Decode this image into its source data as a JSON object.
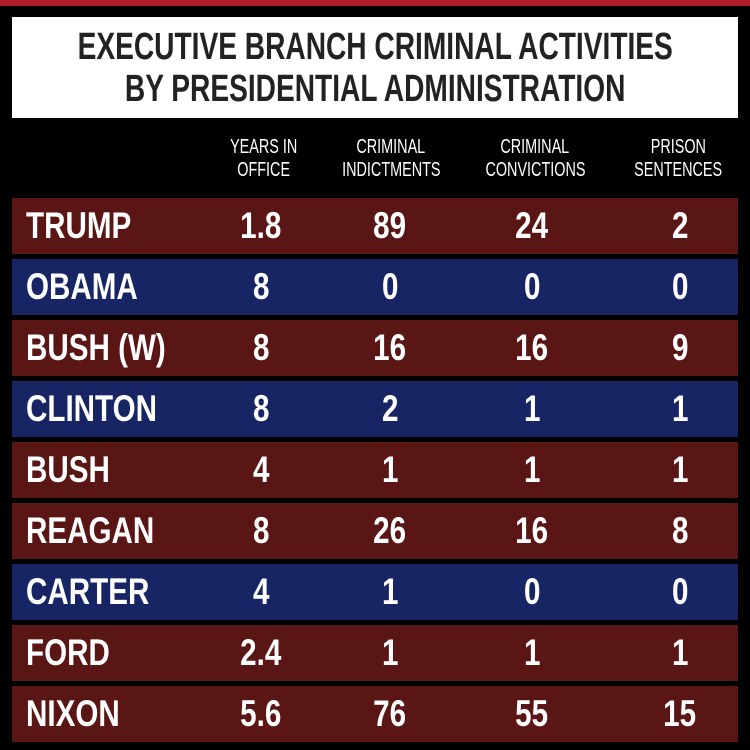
{
  "title": {
    "line1": "EXECUTIVE BRANCH CRIMINAL ACTIVITIES",
    "line2": "BY PRESIDENTIAL ADMINISTRATION"
  },
  "colors": {
    "red_row": "#5a1515",
    "blue_row": "#172565",
    "background": "#000000",
    "title_bg": "#ffffff",
    "title_text": "#222222",
    "accent_line": "#b01c2a"
  },
  "columns": [
    {
      "line1": "YEARS IN",
      "line2": "OFFICE"
    },
    {
      "line1": "CRIMINAL",
      "line2": "INDICTMENTS"
    },
    {
      "line1": "CRIMINAL",
      "line2": "CONVICTIONS"
    },
    {
      "line1": "PRISON",
      "line2": "SENTENCES"
    }
  ],
  "rows": [
    {
      "name": "TRUMP",
      "party": "red",
      "years": "1.8",
      "indictments": "89",
      "convictions": "24",
      "sentences": "2"
    },
    {
      "name": "OBAMA",
      "party": "blue",
      "years": "8",
      "indictments": "0",
      "convictions": "0",
      "sentences": "0"
    },
    {
      "name": "BUSH (W)",
      "party": "red",
      "years": "8",
      "indictments": "16",
      "convictions": "16",
      "sentences": "9"
    },
    {
      "name": "CLINTON",
      "party": "blue",
      "years": "8",
      "indictments": "2",
      "convictions": "1",
      "sentences": "1"
    },
    {
      "name": "BUSH",
      "party": "red",
      "years": "4",
      "indictments": "1",
      "convictions": "1",
      "sentences": "1"
    },
    {
      "name": "REAGAN",
      "party": "red",
      "years": "8",
      "indictments": "26",
      "convictions": "16",
      "sentences": "8"
    },
    {
      "name": "CARTER",
      "party": "blue",
      "years": "4",
      "indictments": "1",
      "convictions": "0",
      "sentences": "0"
    },
    {
      "name": "FORD",
      "party": "red",
      "years": "2.4",
      "indictments": "1",
      "convictions": "1",
      "sentences": "1"
    },
    {
      "name": "NIXON",
      "party": "red",
      "years": "5.6",
      "indictments": "76",
      "convictions": "55",
      "sentences": "15"
    }
  ],
  "chart_data": {
    "type": "table",
    "title": "EXECUTIVE BRANCH CRIMINAL ACTIVITIES BY PRESIDENTIAL ADMINISTRATION",
    "columns": [
      "",
      "YEARS IN OFFICE",
      "CRIMINAL INDICTMENTS",
      "CRIMINAL CONVICTIONS",
      "PRISON SENTENCES"
    ],
    "rows": [
      [
        "TRUMP",
        1.8,
        89,
        24,
        2
      ],
      [
        "OBAMA",
        8,
        0,
        0,
        0
      ],
      [
        "BUSH (W)",
        8,
        16,
        16,
        9
      ],
      [
        "CLINTON",
        8,
        2,
        1,
        1
      ],
      [
        "BUSH",
        4,
        1,
        1,
        1
      ],
      [
        "REAGAN",
        8,
        26,
        16,
        8
      ],
      [
        "CARTER",
        4,
        1,
        0,
        0
      ],
      [
        "FORD",
        2.4,
        1,
        1,
        1
      ],
      [
        "NIXON",
        5.6,
        76,
        55,
        15
      ]
    ]
  }
}
